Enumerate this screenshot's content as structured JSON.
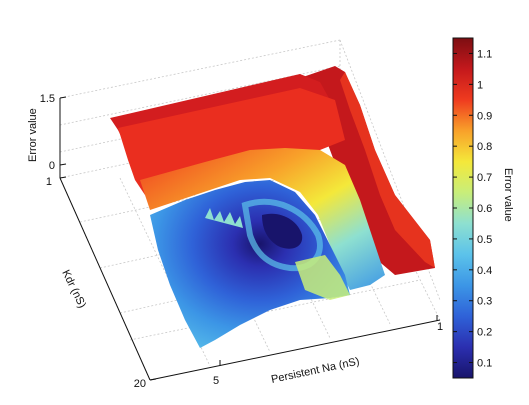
{
  "chart_data": {
    "type": "surface",
    "zlabel": "Error value",
    "xlabel": "Persistent Na (nS)",
    "ylabel": "Kdr (nS)",
    "x_ticks": [
      "5",
      "1"
    ],
    "y_ticks": [
      "1",
      "20"
    ],
    "z_ticks": [
      "1.5",
      "0"
    ],
    "x_range": [
      1,
      10
    ],
    "y_range": [
      1,
      20
    ],
    "z_range": [
      0,
      1.5
    ],
    "grid": true,
    "surface_regions": [
      {
        "region": "plateau",
        "x_nS": [
          1,
          10
        ],
        "y_nS": [
          1,
          6
        ],
        "error": 1.05
      },
      {
        "region": "low basin",
        "x_nS": [
          6,
          10
        ],
        "y_nS": [
          10,
          20
        ],
        "error": 0.15
      },
      {
        "region": "minimum",
        "x_nS": 4.5,
        "y_nS": 9,
        "error": 0.05
      }
    ],
    "colorbar": {
      "label": "Error value",
      "min": 0.05,
      "max": 1.15,
      "ticks": [
        "0.1",
        "0.2",
        "0.3",
        "0.4",
        "0.5",
        "0.6",
        "0.7",
        "0.8",
        "0.9",
        "1",
        "1.1"
      ],
      "colors": [
        "#18146b",
        "#2b2fb0",
        "#2f62d8",
        "#3c96e6",
        "#5cc3ea",
        "#8ee0d0",
        "#c8ee7a",
        "#f4e83a",
        "#f8a12a",
        "#ef3b1f",
        "#c4181c",
        "#7d0e12"
      ]
    }
  }
}
